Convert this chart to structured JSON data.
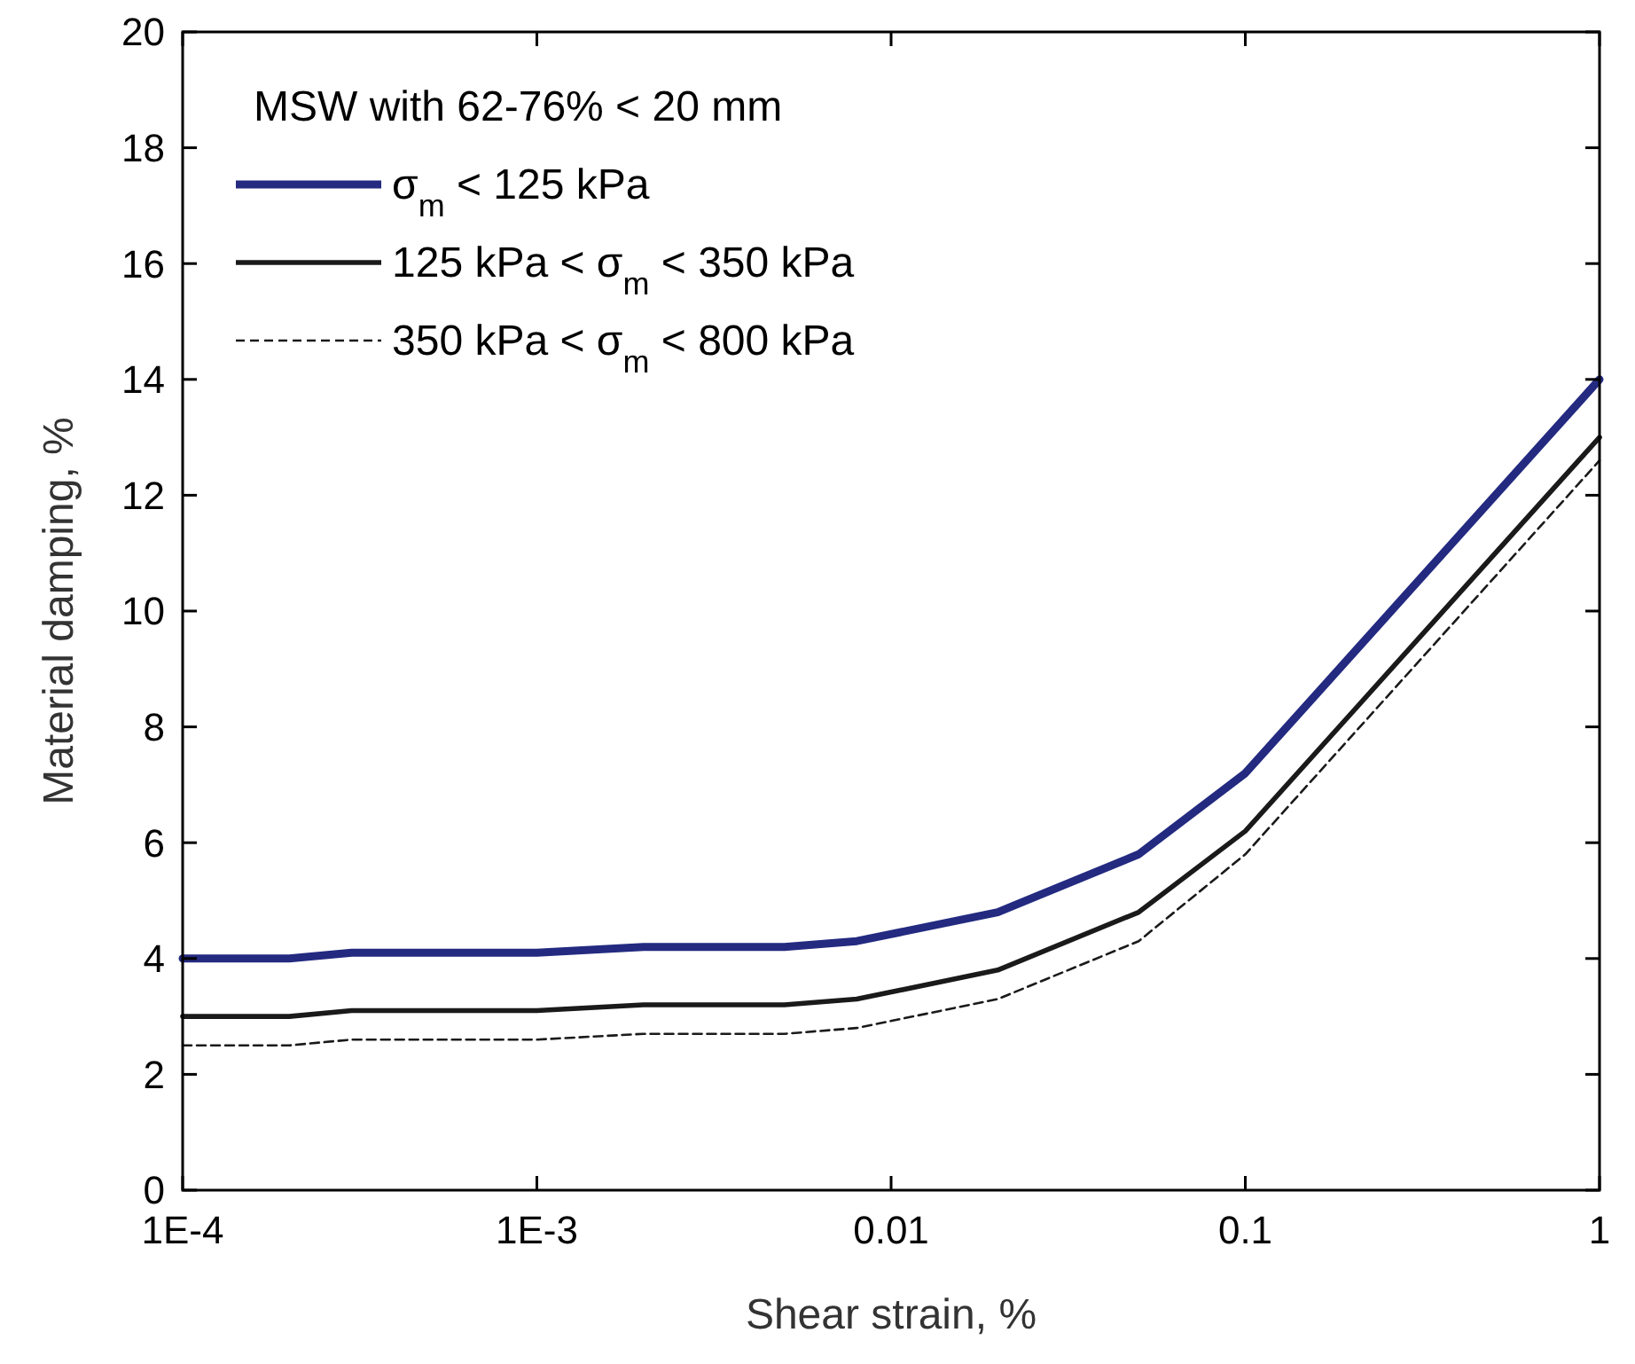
{
  "chart_data": {
    "type": "line",
    "xlabel": "Shear strain, %",
    "ylabel": "Material damping, %",
    "legend_title": "MSW with 62-76% < 20 mm",
    "legend": "top left",
    "log": "x",
    "grid": false,
    "x": [
      0.0001,
      0.0002,
      0.0003,
      0.001,
      0.002,
      0.005,
      0.008,
      0.02,
      0.05,
      0.1,
      1
    ],
    "xlim": [
      0.0001,
      1
    ],
    "xticks": [
      {
        "value": 0.0001,
        "label": "1E-4"
      },
      {
        "value": 0.001,
        "label": "1E-3"
      },
      0.01,
      0.1,
      1
    ],
    "ylim": [
      0,
      20
    ],
    "yticks": [
      0,
      2,
      4,
      6,
      8,
      10,
      12,
      14,
      16,
      18,
      20
    ],
    "series": [
      {
        "name": "σ$_{m}$ < 125 kPa",
        "color": "#232a80",
        "line_style": "solid",
        "values": [
          4.0,
          4.0,
          4.1,
          4.1,
          4.2,
          4.2,
          4.3,
          4.8,
          5.8,
          7.2,
          14.0
        ]
      },
      {
        "name": "125 kPa < σ$_{m}$ < 350 kPa",
        "color": "#1a1a1a",
        "line_style": "solid",
        "values": [
          3.0,
          3.0,
          3.1,
          3.1,
          3.2,
          3.2,
          3.3,
          3.8,
          4.8,
          6.2,
          13.0
        ]
      },
      {
        "name": "350 kPa < σ$_{m}$ < 800 kPa",
        "color": "#1a1a1a",
        "line_style": "dashed",
        "values": [
          2.5,
          2.5,
          2.6,
          2.6,
          2.7,
          2.7,
          2.8,
          3.3,
          4.3,
          5.8,
          12.6
        ]
      }
    ]
  }
}
